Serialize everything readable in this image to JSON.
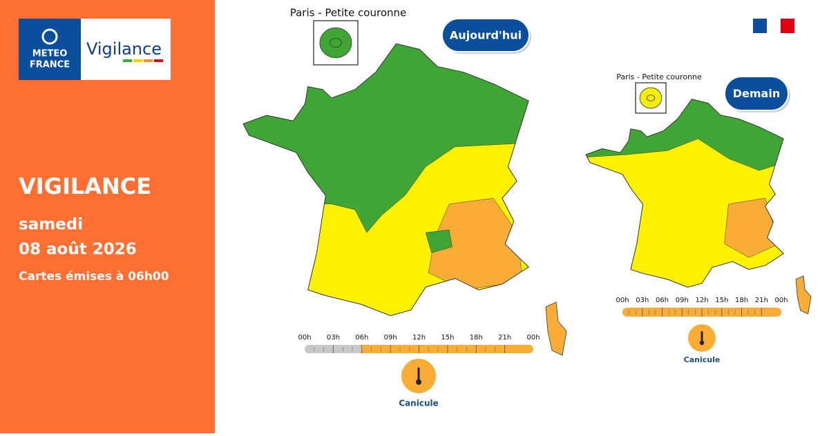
{
  "logo": {
    "brand_line1": "METEO",
    "brand_line2": "FRANCE",
    "product": "Vigilance"
  },
  "sidebar": {
    "title": "VIGILANCE",
    "day": "samedi",
    "date": "08 août 2026",
    "issued": "Cartes émises à 06h00"
  },
  "maps": [
    {
      "inset_label": "Paris - Petite couronne",
      "badge": "Aujourd'hui",
      "timeline": [
        "00h",
        "03h",
        "06h",
        "09h",
        "12h",
        "15h",
        "18h",
        "21h",
        "00h"
      ],
      "hazard": "Canicule"
    },
    {
      "inset_label": "Paris - Petite couronne",
      "badge": "Demain",
      "timeline": [
        "00h",
        "03h",
        "06h",
        "09h",
        "12h",
        "15h",
        "18h",
        "21h",
        "00h"
      ],
      "hazard": "Canicule"
    }
  ]
}
